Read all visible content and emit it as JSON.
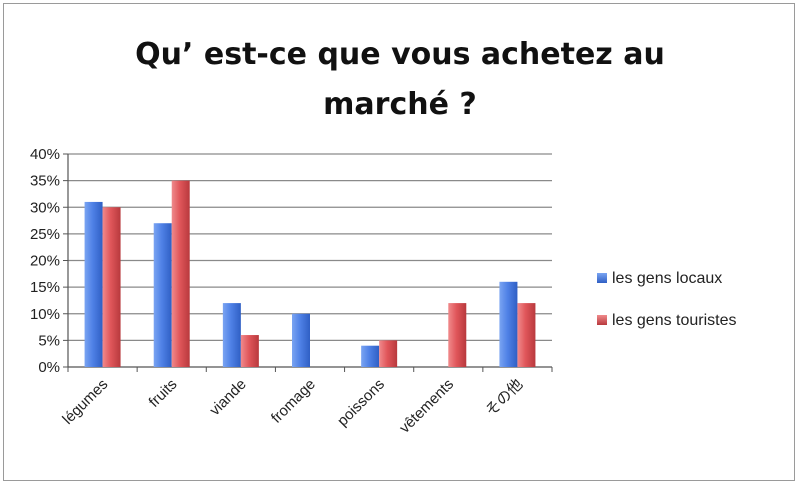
{
  "chart_data": {
    "type": "bar",
    "title_lines": [
      "Qu’ est-ce que vous achetez au",
      "marché ?"
    ],
    "categories": [
      "légumes",
      "fruits",
      "viande",
      "fromage",
      "poissons",
      "vêtements",
      "その他"
    ],
    "series": [
      {
        "name": "les gens locaux",
        "values": [
          0.31,
          0.27,
          0.12,
          0.1,
          0.04,
          0,
          0.16
        ],
        "color": "#4f81e6"
      },
      {
        "name": "les gens touristes",
        "values": [
          0.3,
          0.35,
          0.06,
          0,
          0.05,
          0.12,
          0.12
        ],
        "color": "#e0565a"
      }
    ],
    "yticks": [
      "0%",
      "5%",
      "10%",
      "15%",
      "20%",
      "25%",
      "30%",
      "35%",
      "40%"
    ],
    "ylim": [
      0,
      0.4
    ],
    "grid": true,
    "legend_position": "right"
  }
}
